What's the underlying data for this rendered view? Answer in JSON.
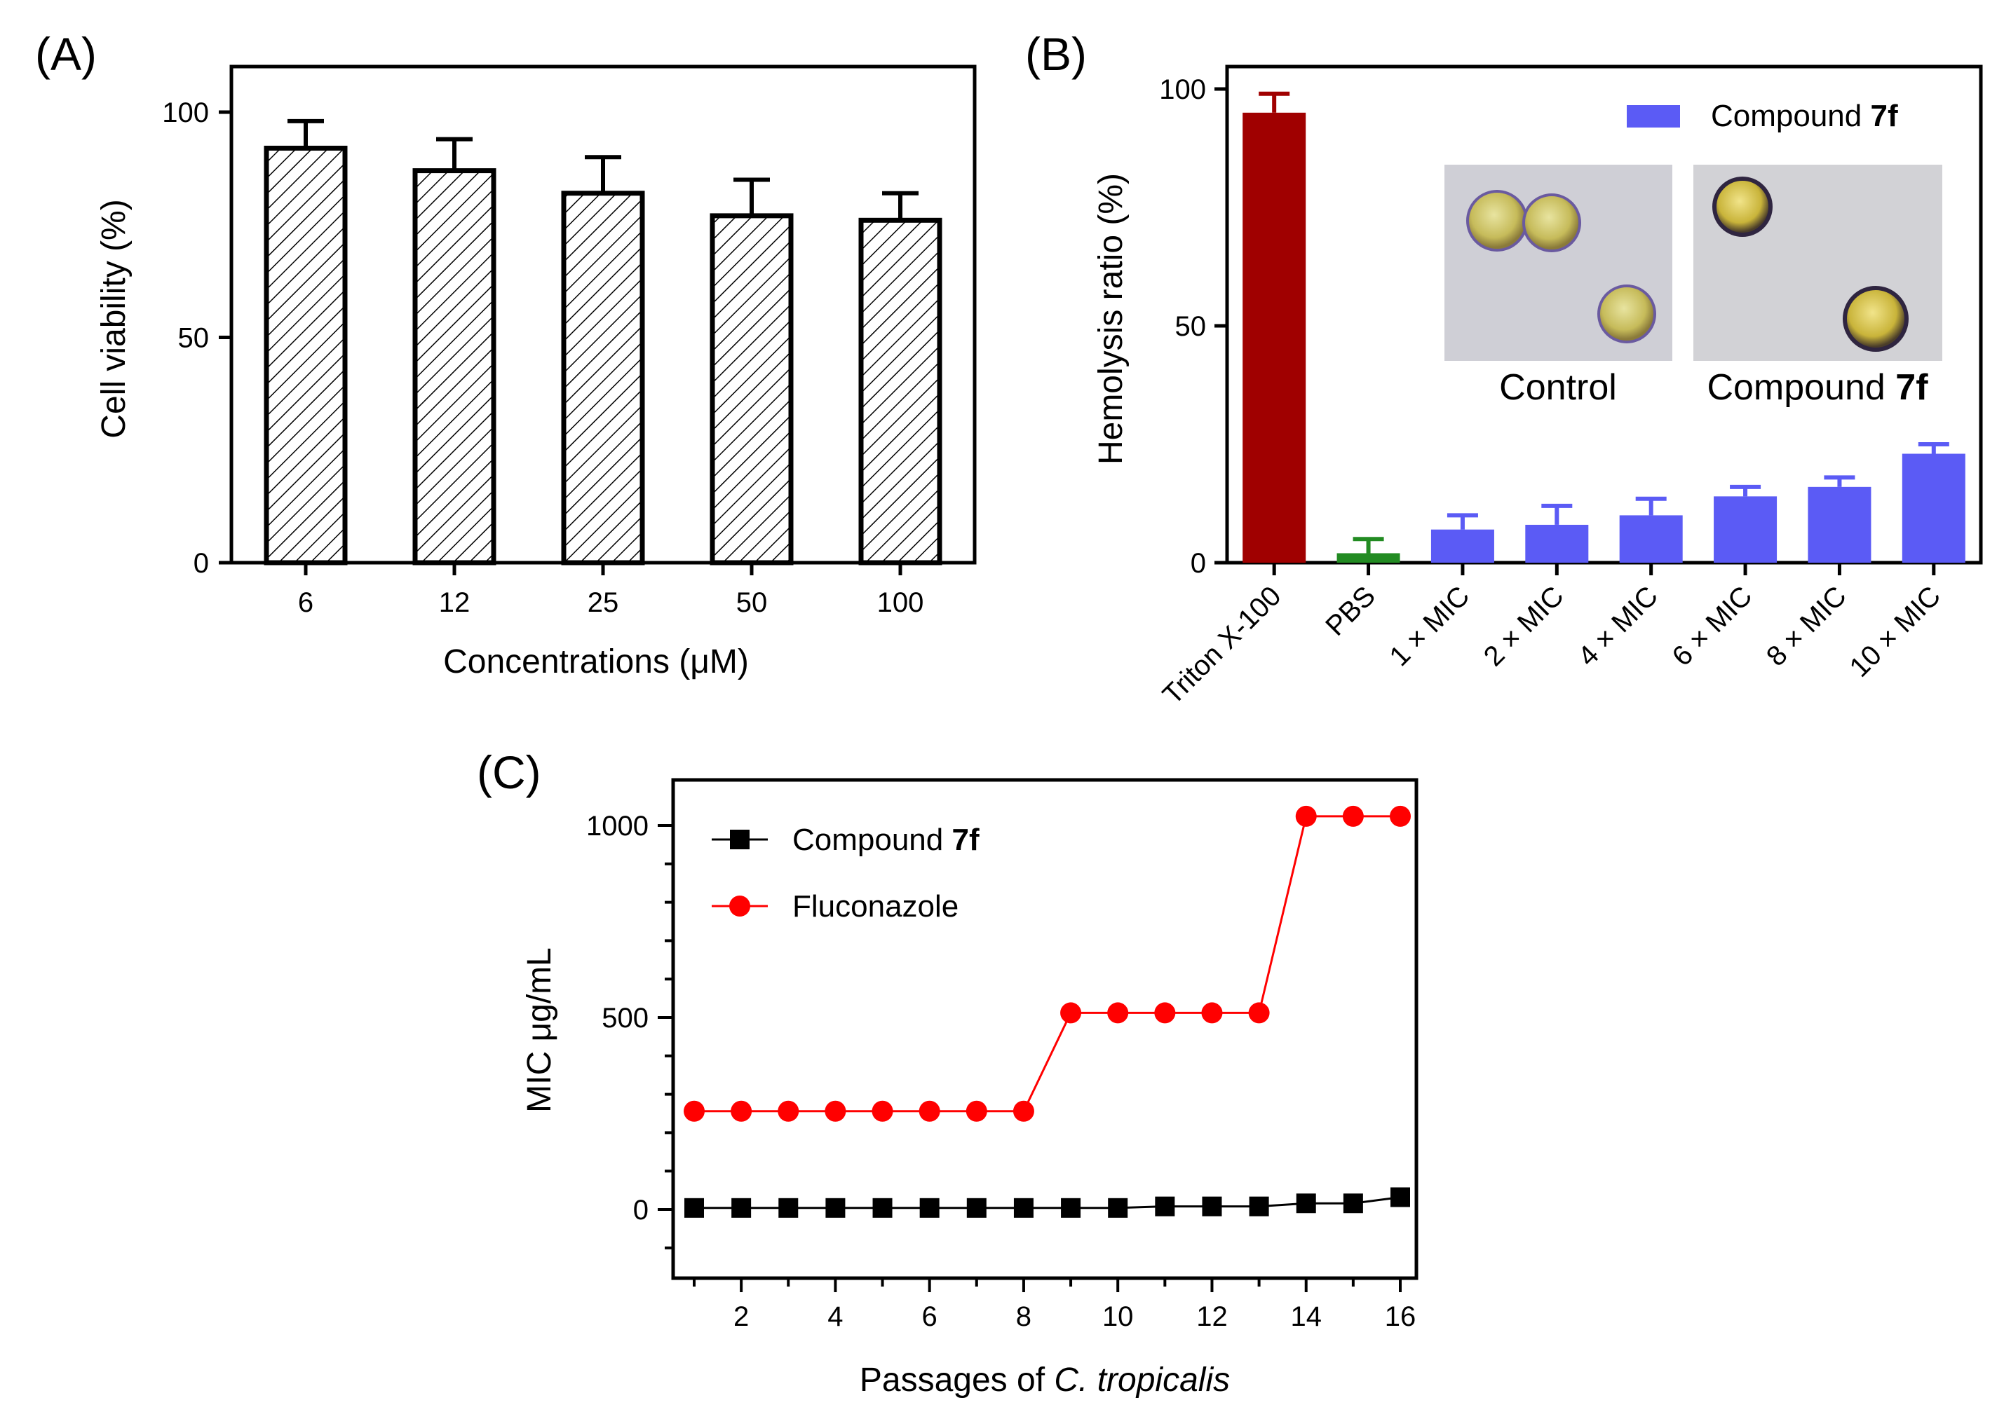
{
  "chart_data": [
    {
      "id": "A",
      "type": "bar",
      "panel_label": "(A)",
      "xlabel": "Concentrations (μM)",
      "ylabel": "Cell viability (%)",
      "categories": [
        "6",
        "12",
        "25",
        "50",
        "100"
      ],
      "values": [
        92,
        87,
        82,
        77,
        76
      ],
      "errors": [
        6,
        7,
        8,
        8,
        6
      ],
      "ylim": [
        0,
        100
      ],
      "yticks": [
        "0",
        "50",
        "100"
      ],
      "bar_fill": "hatched",
      "colors": {
        "hatch": "#000000",
        "edge": "#000000"
      },
      "grid": false
    },
    {
      "id": "B",
      "type": "bar",
      "panel_label": "(B)",
      "xlabel": "",
      "ylabel": "Hemolysis ratio (%)",
      "categories": [
        "Triton X-100",
        "PBS",
        "1 × MIC",
        "2 × MIC",
        "4 × MIC",
        "6 × MIC",
        "8 × MIC",
        "10 × MIC"
      ],
      "values": [
        95,
        2,
        7,
        8,
        10,
        14,
        16,
        23
      ],
      "errors": [
        4,
        3,
        3,
        4,
        3.5,
        2,
        2,
        2
      ],
      "ylim": [
        0,
        100
      ],
      "yticks": [
        "0",
        "50",
        "100"
      ],
      "bar_colors": [
        "#a00000",
        "#228B22",
        "#5b5bf5",
        "#5b5bf5",
        "#5b5bf5",
        "#5b5bf5",
        "#5b5bf5",
        "#5b5bf5"
      ],
      "legend": {
        "label": "Compound ",
        "bold": "7f",
        "placement": "top-right",
        "color": "#5b5bf5"
      },
      "insets": [
        {
          "caption": "Control",
          "caption_bold": ""
        },
        {
          "caption": "Compound ",
          "caption_bold": "7f"
        }
      ],
      "grid": false
    },
    {
      "id": "C",
      "type": "line",
      "panel_label": "(C)",
      "xlabel_prefix": "Passages of ",
      "xlabel_italic": "C. tropicalis",
      "ylabel": "MIC μg/mL",
      "x": [
        1,
        2,
        3,
        4,
        5,
        6,
        7,
        8,
        9,
        10,
        11,
        12,
        13,
        14,
        15,
        16
      ],
      "xlim": [
        0.5,
        16.3
      ],
      "ylim": [
        -170,
        1100
      ],
      "xticks": [
        "2",
        "4",
        "6",
        "8",
        "10",
        "12",
        "14",
        "16"
      ],
      "yticks": [
        "0",
        "500",
        "1000"
      ],
      "series": [
        {
          "name": "Compound ",
          "name_bold": "7f",
          "marker": "square",
          "color": "#000000",
          "values": [
            4,
            4,
            4,
            4,
            4,
            4,
            4,
            4,
            4,
            4,
            8,
            8,
            8,
            16,
            16,
            32
          ]
        },
        {
          "name": "Fluconazole",
          "name_bold": "",
          "marker": "circle",
          "color": "#ff0000",
          "values": [
            256,
            256,
            256,
            256,
            256,
            256,
            256,
            256,
            512,
            512,
            512,
            512,
            512,
            1024,
            1024,
            1024
          ]
        }
      ],
      "legend_placement": "top-left",
      "grid": false
    }
  ]
}
